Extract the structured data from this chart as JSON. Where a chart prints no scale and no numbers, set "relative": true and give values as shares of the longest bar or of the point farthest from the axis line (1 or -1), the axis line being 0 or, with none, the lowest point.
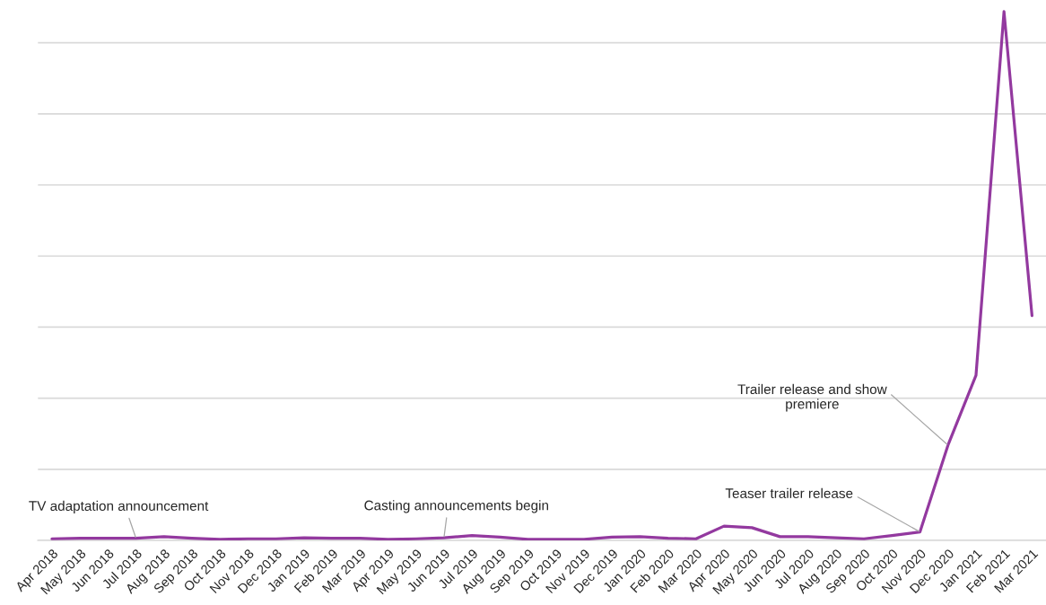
{
  "chart_data": {
    "type": "line",
    "relative": true,
    "categories": [
      "Apr 2018",
      "May 2018",
      "Jun 2018",
      "Jul 2018",
      "Aug 2018",
      "Sep 2018",
      "Oct 2018",
      "Nov 2018",
      "Dec 2018",
      "Jan 2019",
      "Feb 2019",
      "Mar 2019",
      "Apr 2019",
      "May 2019",
      "Jun 2019",
      "Jul 2019",
      "Aug 2019",
      "Sep 2019",
      "Oct 2019",
      "Nov 2019",
      "Dec 2019",
      "Jan 2020",
      "Feb 2020",
      "Mar 2020",
      "Apr 2020",
      "May 2020",
      "Jun 2020",
      "Jul 2020",
      "Aug 2020",
      "Sep 2020",
      "Oct 2020",
      "Nov 2020",
      "Dec 2020",
      "Jan 2021",
      "Feb 2021",
      "Mar 2021"
    ],
    "series": [
      {
        "color": "#93399f",
        "values": [
          0.003,
          0.004,
          0.004,
          0.004,
          0.007,
          0.004,
          0.002,
          0.003,
          0.003,
          0.005,
          0.004,
          0.004,
          0.002,
          0.003,
          0.005,
          0.009,
          0.006,
          0.002,
          0.002,
          0.002,
          0.006,
          0.007,
          0.004,
          0.003,
          0.027,
          0.024,
          0.007,
          0.007,
          0.005,
          0.003,
          0.009,
          0.016,
          0.18,
          0.312,
          1,
          0.425
        ]
      }
    ],
    "grid": "y",
    "tick_labels": "x",
    "annotations": [
      {
        "text": "TV adaptation announcement",
        "x": "Jul 2018",
        "y": 0.004
      },
      {
        "text": "Casting announcements begin",
        "x": "Jun 2019",
        "y": 0.005
      },
      {
        "text": "Teaser trailer release",
        "x": "Nov 2020",
        "y": 0.016
      },
      {
        "text": "Trailer release and show\npremiere",
        "x": "Dec 2020",
        "y": 0.18
      }
    ]
  }
}
